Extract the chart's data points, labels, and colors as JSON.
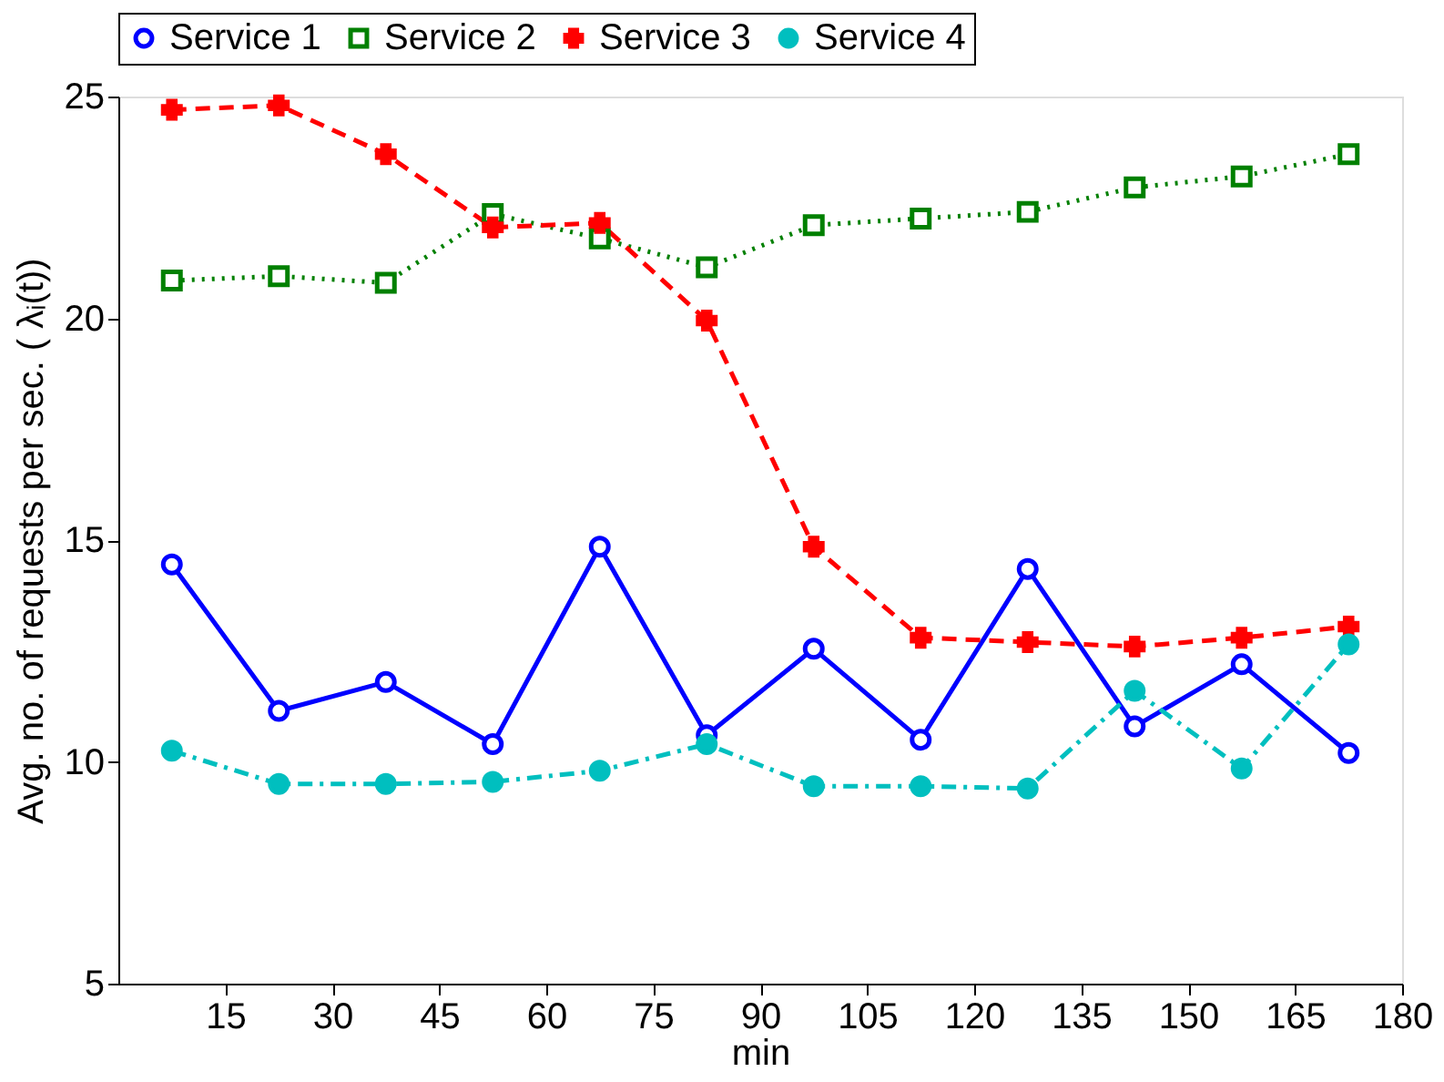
{
  "chart_data": {
    "type": "line",
    "xlabel": "min",
    "ylabel": "Avg. no. of requests per sec. ( λᵢ(t))",
    "x": [
      7.5,
      22.5,
      37.5,
      52.5,
      67.5,
      82.5,
      97.5,
      112.5,
      127.5,
      142.5,
      157.5,
      172.5
    ],
    "xlim": [
      0,
      180
    ],
    "xticks": [
      15,
      30,
      45,
      60,
      75,
      90,
      105,
      120,
      135,
      150,
      165,
      180
    ],
    "ylim": [
      5,
      25
    ],
    "yticks": [
      5,
      10,
      15,
      20,
      25
    ],
    "grid": false,
    "legend": "top",
    "series": [
      {
        "name": "Service 1",
        "color": "#0000ff",
        "marker": "circle",
        "line_style": "solid",
        "values": [
          14.45,
          11.15,
          11.8,
          10.4,
          14.85,
          10.6,
          12.55,
          10.5,
          14.35,
          10.8,
          12.2,
          10.2
        ]
      },
      {
        "name": "Service 2",
        "color": "#008000",
        "marker": "square",
        "line_style": "dotted",
        "values": [
          20.85,
          20.95,
          20.8,
          22.35,
          21.8,
          21.15,
          22.1,
          22.25,
          22.4,
          22.95,
          23.2,
          23.7
        ]
      },
      {
        "name": "Service 3",
        "color": "#ff0000",
        "marker": "cross",
        "line_style": "dashed",
        "values": [
          24.7,
          24.8,
          23.7,
          22.05,
          22.15,
          19.95,
          14.85,
          12.8,
          12.7,
          12.6,
          12.8,
          13.05
        ]
      },
      {
        "name": "Service 4",
        "color": "#00bfbf",
        "marker": "filled circle",
        "line_style": "dashdot",
        "values": [
          10.25,
          9.5,
          9.5,
          9.55,
          9.8,
          10.4,
          9.45,
          9.45,
          9.4,
          11.6,
          9.85,
          12.65
        ]
      }
    ]
  }
}
